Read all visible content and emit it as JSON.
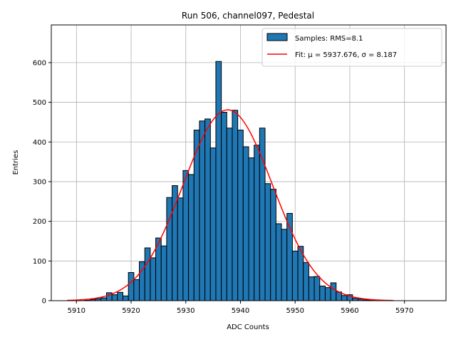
{
  "chart_data": {
    "type": "bar",
    "title": "Run 506, channel097, Pedestal",
    "xlabel": "ADC Counts",
    "ylabel": "Entries",
    "xlim": [
      5905.4,
      5977.6
    ],
    "ylim": [
      0,
      695
    ],
    "xticks": [
      5910,
      5920,
      5930,
      5940,
      5950,
      5960,
      5970
    ],
    "yticks": [
      0,
      100,
      200,
      300,
      400,
      500,
      600
    ],
    "grid": true,
    "legend_position": "top-right",
    "bin_width": 1,
    "bins": [
      {
        "x": 5912,
        "count": 1
      },
      {
        "x": 5913,
        "count": 3
      },
      {
        "x": 5914,
        "count": 5
      },
      {
        "x": 5915,
        "count": 7
      },
      {
        "x": 5916,
        "count": 20
      },
      {
        "x": 5917,
        "count": 15
      },
      {
        "x": 5918,
        "count": 21
      },
      {
        "x": 5919,
        "count": 12
      },
      {
        "x": 5920,
        "count": 71
      },
      {
        "x": 5921,
        "count": 53
      },
      {
        "x": 5922,
        "count": 98
      },
      {
        "x": 5923,
        "count": 133
      },
      {
        "x": 5924,
        "count": 108
      },
      {
        "x": 5925,
        "count": 158
      },
      {
        "x": 5926,
        "count": 138
      },
      {
        "x": 5927,
        "count": 260
      },
      {
        "x": 5928,
        "count": 290
      },
      {
        "x": 5929,
        "count": 259
      },
      {
        "x": 5930,
        "count": 328
      },
      {
        "x": 5931,
        "count": 318
      },
      {
        "x": 5932,
        "count": 430
      },
      {
        "x": 5933,
        "count": 453
      },
      {
        "x": 5934,
        "count": 458
      },
      {
        "x": 5935,
        "count": 385
      },
      {
        "x": 5936,
        "count": 603
      },
      {
        "x": 5937,
        "count": 475
      },
      {
        "x": 5938,
        "count": 435
      },
      {
        "x": 5939,
        "count": 480
      },
      {
        "x": 5940,
        "count": 430
      },
      {
        "x": 5941,
        "count": 388
      },
      {
        "x": 5942,
        "count": 360
      },
      {
        "x": 5943,
        "count": 392
      },
      {
        "x": 5944,
        "count": 435
      },
      {
        "x": 5945,
        "count": 295
      },
      {
        "x": 5946,
        "count": 281
      },
      {
        "x": 5947,
        "count": 194
      },
      {
        "x": 5948,
        "count": 180
      },
      {
        "x": 5949,
        "count": 220
      },
      {
        "x": 5950,
        "count": 125
      },
      {
        "x": 5951,
        "count": 137
      },
      {
        "x": 5952,
        "count": 96
      },
      {
        "x": 5953,
        "count": 60
      },
      {
        "x": 5954,
        "count": 61
      },
      {
        "x": 5955,
        "count": 37
      },
      {
        "x": 5956,
        "count": 33
      },
      {
        "x": 5957,
        "count": 45
      },
      {
        "x": 5958,
        "count": 22
      },
      {
        "x": 5959,
        "count": 13
      },
      {
        "x": 5960,
        "count": 15
      },
      {
        "x": 5961,
        "count": 6
      },
      {
        "x": 5962,
        "count": 4
      },
      {
        "x": 5963,
        "count": 2
      },
      {
        "x": 5964,
        "count": 1
      }
    ],
    "fit": {
      "type": "gaussian",
      "mu": 5937.676,
      "sigma": 8.187,
      "amplitude": 481,
      "x_range": [
        5908.3,
        5968.0
      ]
    },
    "series": [
      {
        "name": "Samples: RMS=8.1",
        "kind": "histogram",
        "color": "#1f77b4"
      },
      {
        "name": "Fit: μ = 5937.676, σ = 8.187",
        "kind": "line",
        "color": "#ff0000"
      }
    ]
  },
  "legend": {
    "samples_label": "Samples: RMS=8.1",
    "fit_label": "Fit: μ = 5937.676, σ = 8.187"
  }
}
